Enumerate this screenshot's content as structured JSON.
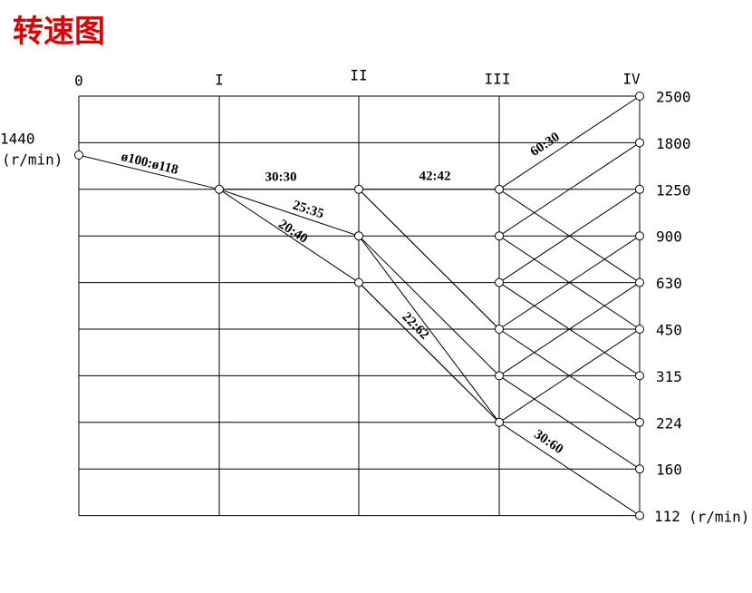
{
  "title": "转速图",
  "shafts": [
    "0",
    "I",
    "II",
    "III",
    "IV"
  ],
  "input_speed": 1440,
  "unit": "(r/min)",
  "output_speeds": [
    2500,
    1800,
    1250,
    900,
    630,
    450,
    315,
    224,
    160,
    112
  ],
  "ratios": [
    "ø100:ø118",
    "30:30",
    "25:35",
    "20:40",
    "42:42",
    "22:62",
    "60:30",
    "30:60"
  ]
}
